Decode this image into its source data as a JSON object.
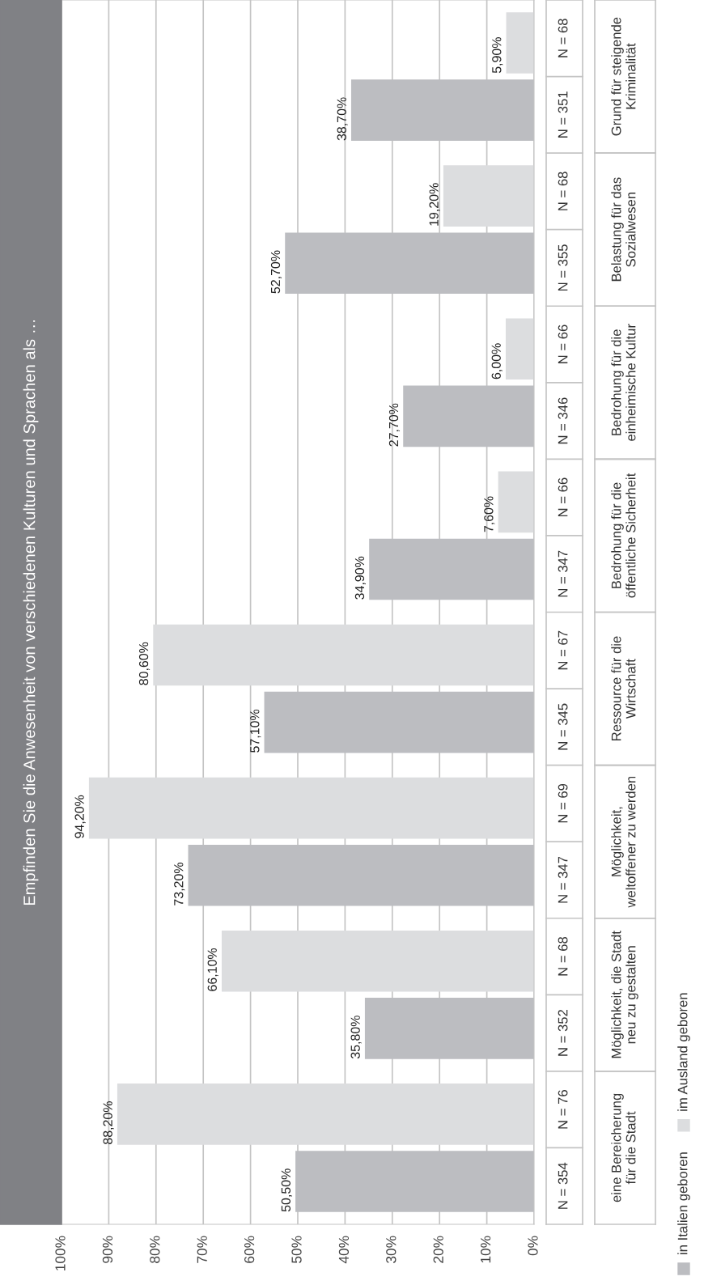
{
  "chart_data": {
    "type": "bar",
    "orientation": "horizontal",
    "title": "Empfinden Sie die Anwesenheit von verschiedenen Kulturen und Sprachen als …",
    "categories": [
      "Grund für steigende\nKriminalität",
      "Belastung für das\nSozialwesen",
      "Bedrohung für die\neinheimische Kultur",
      "Bedrohung für die\nöffentliche Sicherheit",
      "Ressource für die\nWirtschaft",
      "Möglichkeit,\nweltoffener zu werden",
      "Möglichkeit, die Stadt\nneu zu gestalten",
      "eine Bereicherung\nfür die Stadt"
    ],
    "series": [
      {
        "name": "in Italien geboren",
        "color": "#bcbdc1",
        "values": [
          38.7,
          52.7,
          27.7,
          34.9,
          57.1,
          73.2,
          35.8,
          50.5
        ],
        "value_labels": [
          "38,70%",
          "52,70%",
          "27,70%",
          "34,90%",
          "57,10%",
          "73,20%",
          "35,80%",
          "50,50%"
        ]
      },
      {
        "name": "im Ausland geboren",
        "color": "#dcdddf",
        "values": [
          5.9,
          19.2,
          6.0,
          7.6,
          80.6,
          94.2,
          66.1,
          88.2
        ],
        "value_labels": [
          "5,90%",
          "19,20%",
          "6,00%",
          "7,60%",
          "80,60%",
          "94,20%",
          "66,10%",
          "88,20%"
        ]
      }
    ],
    "annotations": [
      "N = 351",
      "N = 68",
      "N = 355",
      "N = 68",
      "N = 346",
      "N = 66",
      "N = 347",
      "N = 66",
      "N = 345",
      "N = 67",
      "N = 347",
      "N = 69",
      "N = 352",
      "N = 68",
      "N = 354",
      "N = 76"
    ],
    "xlim": [
      100,
      0
    ],
    "xticks": [
      {
        "value": 100,
        "label": "100%"
      },
      {
        "value": 90,
        "label": "90%"
      },
      {
        "value": 80,
        "label": "80%"
      },
      {
        "value": 70,
        "label": "70%"
      },
      {
        "value": 60,
        "label": "60%"
      },
      {
        "value": 50,
        "label": "50%"
      },
      {
        "value": 40,
        "label": "40%"
      },
      {
        "value": 30,
        "label": "30%"
      },
      {
        "value": 20,
        "label": "20%"
      },
      {
        "value": 10,
        "label": "10%"
      },
      {
        "value": 0,
        "label": "0%"
      }
    ],
    "grid": "x",
    "legend": "right"
  }
}
